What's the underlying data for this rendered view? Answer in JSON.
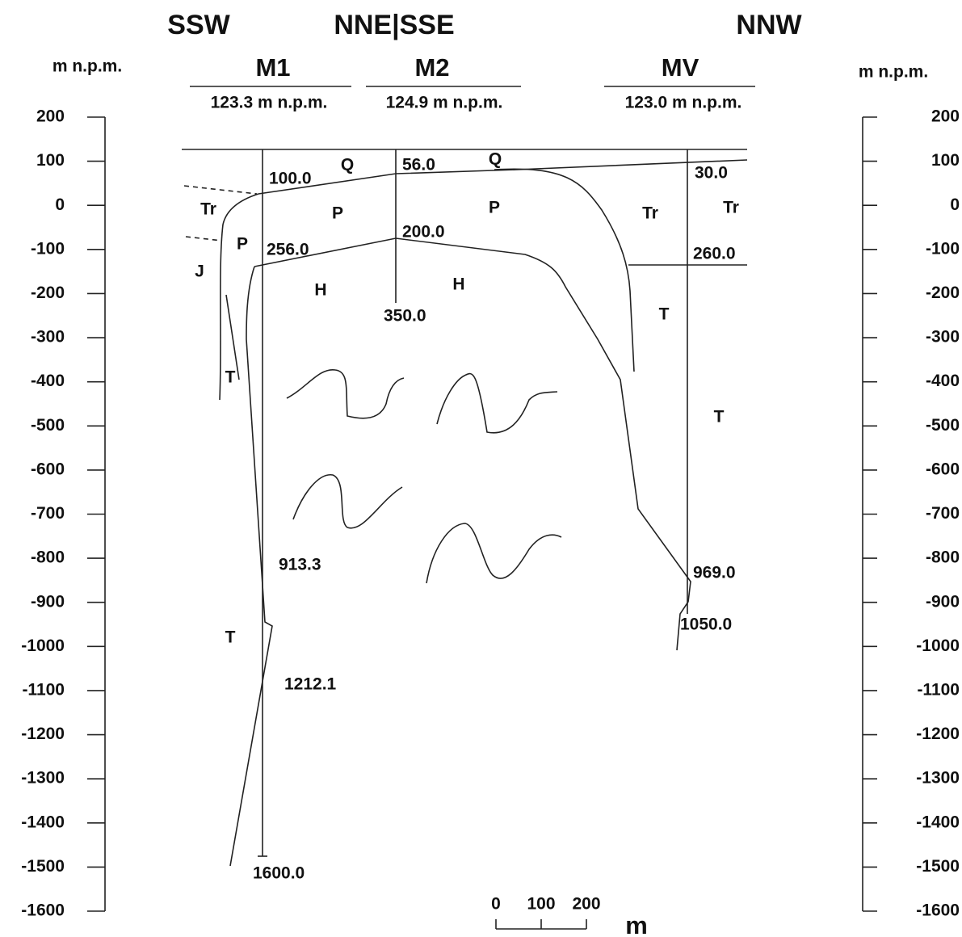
{
  "directions": [
    "SSW",
    "NNE|SSE",
    "NNW"
  ],
  "axis_title_left": "m n.p.m.",
  "axis_title_right": "m n.p.m.",
  "axis": {
    "ylim": [
      -1600,
      200
    ],
    "yticks": [
      200,
      100,
      0,
      -100,
      -200,
      -300,
      -400,
      -500,
      -600,
      -700,
      -800,
      -900,
      -1000,
      -1100,
      -1200,
      -1300,
      -1400,
      -1500,
      -1600
    ]
  },
  "wells": [
    {
      "name": "M1",
      "elevation": "123.3 m n.p.m."
    },
    {
      "name": "M2",
      "elevation": "124.9 m n.p.m."
    },
    {
      "name": "MV",
      "elevation": "123.0 m n.p.m."
    }
  ],
  "depth_labels": [
    "100.0",
    "256.0",
    "913.3",
    "1212.1",
    "1600.0",
    "56.0",
    "200.0",
    "350.0",
    "30.0",
    "260.0",
    "969.0",
    "1050.0"
  ],
  "unit_labels": [
    "Q",
    "Q",
    "Tr",
    "P",
    "P",
    "P",
    "J",
    "H",
    "H",
    "Tr",
    "Tr",
    "T",
    "T",
    "T",
    "T"
  ],
  "scale_bar": {
    "ticks": [
      0,
      100,
      200
    ],
    "unit": "m"
  }
}
